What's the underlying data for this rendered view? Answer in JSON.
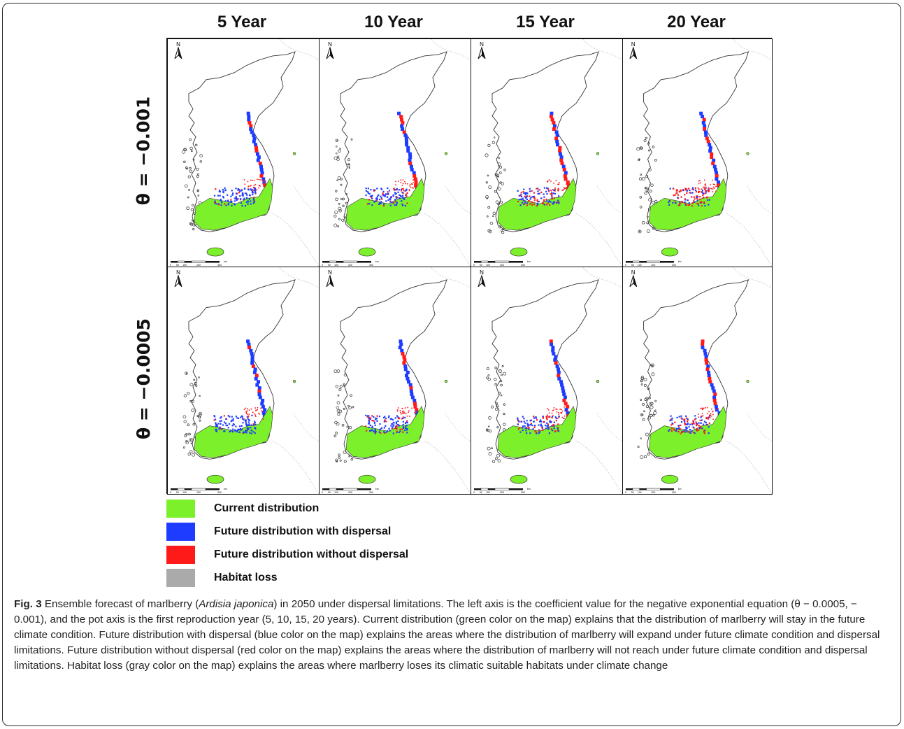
{
  "columns": [
    "5 Year",
    "10 Year",
    "15 Year",
    "20 Year"
  ],
  "rows": [
    "θ = −0.001",
    "θ = −0.0005"
  ],
  "map": {
    "north_label": "N",
    "scale_ticks": [
      "0",
      "50",
      "100",
      "200",
      "300"
    ],
    "scale_unit": "km"
  },
  "legend": [
    {
      "label": "Current distribution",
      "color": "#7cf02a"
    },
    {
      "label": "Future distribution with dispersal",
      "color": "#1e3cff"
    },
    {
      "label": "Future distribution without dispersal",
      "color": "#ff1a1a"
    },
    {
      "label": "Habitat loss",
      "color": "#aaaaaa"
    }
  ],
  "caption": {
    "fig_label": "Fig. 3",
    "text_1": " Ensemble forecast of marlberry (",
    "species": "Ardisia japonica",
    "text_2": ") in 2050 under dispersal limitations. The left axis is the coefficient value for the negative exponential equation (θ − 0.0005, − 0.001), and the pot axis is the first reproduction year (5, 10, 15, 20 years). Current distribution (green color on the map) explains that the distribution of marlberry will stay in the future climate condition. Future distribution with dispersal (blue color on the map) explains the areas where the distribution of marlberry will expand under future climate condition and dispersal limitations. Future distribution without dispersal (red color on the map) explains the areas where the distribution of marlberry will not reach under future climate condition and dispersal limitations. Habitat loss (gray color on the map) explains the areas where marlberry loses its climatic suitable habitats under climate change"
  }
}
